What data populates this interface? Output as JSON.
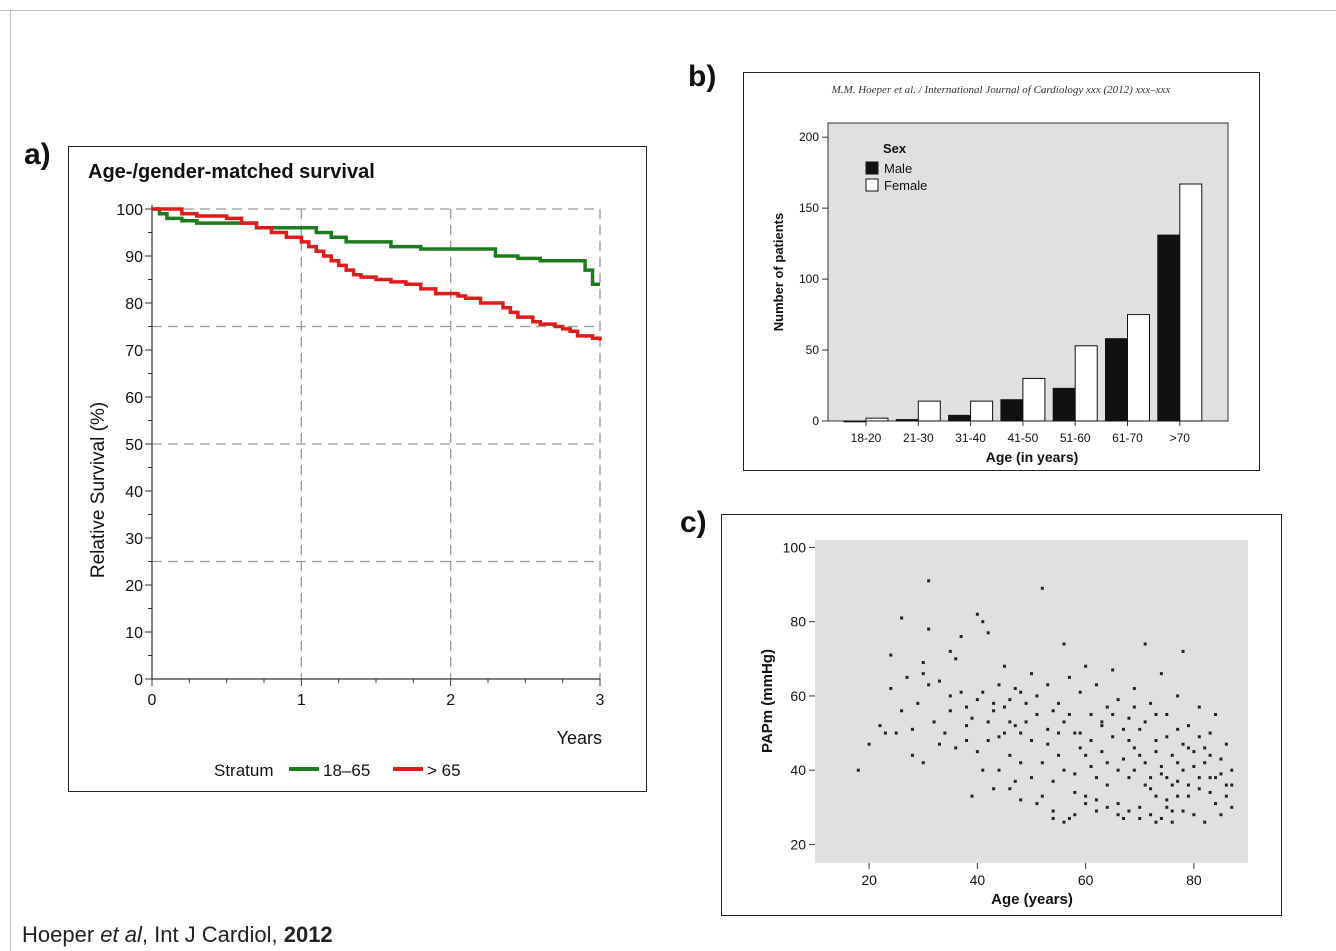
{
  "citation": {
    "author": "Hoeper",
    "etal": "et al",
    "journal": ", Int J Cardiol, ",
    "year": "2012"
  },
  "panels": {
    "a": "a)",
    "b": "b)",
    "c": "c)"
  },
  "chart_data": [
    {
      "id": "a",
      "type": "line",
      "title": "Age-/gender-matched survival",
      "xlabel": "Years",
      "ylabel": "Relative Survival (%)",
      "xlim": [
        0,
        3
      ],
      "ylim": [
        0,
        100
      ],
      "xticks": [
        "0",
        "1",
        "2",
        "3"
      ],
      "yticks": [
        "0",
        "10",
        "20",
        "30",
        "40",
        "50",
        "60",
        "70",
        "80",
        "90",
        "100"
      ],
      "grid": "dashed at x=1,2,3 and y=25,50,75,100",
      "legend": {
        "title": "Stratum",
        "placement": "bottom"
      },
      "colors": {
        "18–65": "#1e7a1e",
        "> 65": "#e11b1b"
      },
      "series": [
        {
          "name": "18–65",
          "step": true,
          "x": [
            0,
            0.05,
            0.1,
            0.2,
            0.3,
            0.5,
            0.7,
            1.0,
            1.1,
            1.2,
            1.3,
            1.45,
            1.6,
            1.8,
            2.3,
            2.45,
            2.6,
            2.85,
            2.9,
            2.95,
            3.0
          ],
          "y": [
            100,
            99,
            98,
            97.5,
            97,
            97,
            96,
            96,
            95,
            94,
            93,
            93,
            92,
            91.5,
            90,
            89.5,
            89,
            89,
            87,
            84,
            84
          ]
        },
        {
          "name": "> 65",
          "step": true,
          "x": [
            0,
            0.2,
            0.3,
            0.5,
            0.6,
            0.7,
            0.8,
            0.9,
            1.0,
            1.05,
            1.1,
            1.15,
            1.2,
            1.25,
            1.3,
            1.35,
            1.4,
            1.5,
            1.6,
            1.7,
            1.8,
            1.9,
            2.0,
            2.05,
            2.1,
            2.2,
            2.35,
            2.4,
            2.45,
            2.55,
            2.6,
            2.7,
            2.75,
            2.8,
            2.85,
            2.95,
            3.0
          ],
          "y": [
            100,
            99,
            98.5,
            98,
            97,
            96,
            95,
            94,
            93,
            92,
            91,
            90,
            89,
            88,
            87,
            86,
            85.5,
            85,
            84.5,
            84,
            83,
            82,
            82,
            81.5,
            81,
            80,
            79,
            78,
            77,
            76,
            75.5,
            75,
            74.5,
            74,
            73,
            72.5,
            72
          ]
        }
      ]
    },
    {
      "id": "b",
      "type": "bar",
      "header": "M.M. Hoeper et al. / International Journal of Cardiology xxx (2012) xxx–xxx",
      "xlabel": "Age (in years)",
      "ylabel": "Number of patients",
      "ylim": [
        0,
        210
      ],
      "yticks": [
        "0",
        "50",
        "100",
        "150",
        "200"
      ],
      "categories": [
        "18-20",
        "21-30",
        "31-40",
        "41-50",
        "51-60",
        "61-70",
        ">70"
      ],
      "legend": {
        "title": "Sex",
        "placement": "top-left"
      },
      "colors": {
        "Male": "#111111",
        "Female": "#ffffff",
        "background": "#e0e0e0"
      },
      "series": [
        {
          "name": "Male",
          "values": [
            0,
            1,
            4,
            15,
            23,
            58,
            131
          ]
        },
        {
          "name": "Female",
          "values": [
            2,
            14,
            14,
            30,
            53,
            75,
            167
          ]
        }
      ]
    },
    {
      "id": "c",
      "type": "scatter",
      "xlabel": "Age (years)",
      "ylabel": "PAPm (mmHg)",
      "xlim": [
        10,
        90
      ],
      "ylim": [
        15,
        102
      ],
      "xticks": [
        "20",
        "40",
        "60",
        "80"
      ],
      "yticks": [
        "20",
        "40",
        "60",
        "80",
        "100"
      ],
      "colors": {
        "point": "#222222",
        "background": "#e0e0e0"
      },
      "points": [
        [
          18,
          40
        ],
        [
          20,
          47
        ],
        [
          22,
          52
        ],
        [
          23,
          50
        ],
        [
          24,
          71
        ],
        [
          24,
          62
        ],
        [
          25,
          50
        ],
        [
          26,
          81
        ],
        [
          26,
          56
        ],
        [
          27,
          65
        ],
        [
          28,
          51
        ],
        [
          28,
          44
        ],
        [
          29,
          58
        ],
        [
          30,
          69
        ],
        [
          30,
          66
        ],
        [
          30,
          42
        ],
        [
          31,
          78
        ],
        [
          31,
          63
        ],
        [
          31,
          91
        ],
        [
          32,
          53
        ],
        [
          33,
          64
        ],
        [
          33,
          47
        ],
        [
          34,
          50
        ],
        [
          35,
          72
        ],
        [
          35,
          56
        ],
        [
          36,
          46
        ],
        [
          36,
          70
        ],
        [
          37,
          61
        ],
        [
          37,
          76
        ],
        [
          38,
          52
        ],
        [
          38,
          48
        ],
        [
          39,
          33
        ],
        [
          40,
          59
        ],
        [
          40,
          45
        ],
        [
          40,
          82
        ],
        [
          41,
          80
        ],
        [
          41,
          61
        ],
        [
          41,
          40
        ],
        [
          42,
          77
        ],
        [
          42,
          53
        ],
        [
          43,
          35
        ],
        [
          43,
          56
        ],
        [
          44,
          63
        ],
        [
          44,
          49
        ],
        [
          45,
          68
        ],
        [
          45,
          57
        ],
        [
          46,
          59
        ],
        [
          46,
          44
        ],
        [
          47,
          37
        ],
        [
          47,
          52
        ],
        [
          48,
          61
        ],
        [
          48,
          32
        ],
        [
          49,
          53
        ],
        [
          50,
          66
        ],
        [
          50,
          48
        ],
        [
          51,
          31
        ],
        [
          51,
          60
        ],
        [
          52,
          42
        ],
        [
          52,
          89
        ],
        [
          53,
          63
        ],
        [
          53,
          47
        ],
        [
          54,
          56
        ],
        [
          54,
          29
        ],
        [
          55,
          58
        ],
        [
          55,
          44
        ],
        [
          56,
          74
        ],
        [
          56,
          53
        ],
        [
          57,
          27
        ],
        [
          57,
          65
        ],
        [
          58,
          50
        ],
        [
          58,
          39
        ],
        [
          59,
          61
        ],
        [
          59,
          46
        ],
        [
          60,
          68
        ],
        [
          60,
          33
        ],
        [
          61,
          55
        ],
        [
          61,
          41
        ],
        [
          62,
          63
        ],
        [
          62,
          29
        ],
        [
          63,
          52
        ],
        [
          63,
          45
        ],
        [
          64,
          57
        ],
        [
          64,
          36
        ],
        [
          65,
          67
        ],
        [
          65,
          49
        ],
        [
          66,
          31
        ],
        [
          66,
          59
        ],
        [
          67,
          43
        ],
        [
          67,
          27
        ],
        [
          68,
          54
        ],
        [
          68,
          38
        ],
        [
          69,
          62
        ],
        [
          69,
          46
        ],
        [
          70,
          30
        ],
        [
          70,
          51
        ],
        [
          71,
          74
        ],
        [
          71,
          42
        ],
        [
          72,
          35
        ],
        [
          72,
          58
        ],
        [
          73,
          26
        ],
        [
          73,
          48
        ],
        [
          74,
          66
        ],
        [
          74,
          39
        ],
        [
          75,
          32
        ],
        [
          75,
          55
        ],
        [
          76,
          44
        ],
        [
          76,
          29
        ],
        [
          77,
          60
        ],
        [
          77,
          37
        ],
        [
          78,
          47
        ],
        [
          78,
          72
        ],
        [
          79,
          33
        ],
        [
          79,
          52
        ],
        [
          80,
          28
        ],
        [
          80,
          41
        ],
        [
          81,
          57
        ],
        [
          81,
          35
        ],
        [
          82,
          46
        ],
        [
          82,
          26
        ],
        [
          83,
          50
        ],
        [
          83,
          38
        ],
        [
          84,
          31
        ],
        [
          84,
          55
        ],
        [
          85,
          43
        ],
        [
          85,
          28
        ],
        [
          86,
          36
        ],
        [
          86,
          47
        ],
        [
          87,
          30
        ],
        [
          87,
          40
        ],
        [
          70,
          44
        ],
        [
          72,
          38
        ],
        [
          74,
          41
        ],
        [
          76,
          36
        ],
        [
          78,
          40
        ],
        [
          73,
          33
        ],
        [
          75,
          38
        ],
        [
          77,
          42
        ],
        [
          79,
          36
        ],
        [
          71,
          36
        ],
        [
          69,
          40
        ],
        [
          73,
          45
        ],
        [
          75,
          30
        ],
        [
          77,
          33
        ],
        [
          81,
          38
        ],
        [
          83,
          34
        ],
        [
          68,
          48
        ],
        [
          66,
          40
        ],
        [
          64,
          42
        ],
        [
          62,
          38
        ],
        [
          60,
          44
        ],
        [
          58,
          34
        ],
        [
          56,
          40
        ],
        [
          54,
          37
        ],
        [
          52,
          33
        ],
        [
          50,
          38
        ],
        [
          48,
          42
        ],
        [
          46,
          35
        ],
        [
          44,
          40
        ],
        [
          42,
          48
        ],
        [
          55,
          50
        ],
        [
          57,
          55
        ],
        [
          59,
          50
        ],
        [
          61,
          48
        ],
        [
          63,
          53
        ],
        [
          65,
          55
        ],
        [
          67,
          51
        ],
        [
          69,
          57
        ],
        [
          71,
          53
        ],
        [
          73,
          55
        ],
        [
          75,
          49
        ],
        [
          77,
          51
        ],
        [
          79,
          46
        ],
        [
          81,
          49
        ],
        [
          83,
          44
        ],
        [
          85,
          39
        ],
        [
          87,
          36
        ],
        [
          86,
          33
        ],
        [
          84,
          38
        ],
        [
          82,
          42
        ],
        [
          80,
          45
        ],
        [
          78,
          29
        ],
        [
          76,
          26
        ],
        [
          74,
          27
        ],
        [
          72,
          28
        ],
        [
          70,
          27
        ],
        [
          68,
          29
        ],
        [
          66,
          28
        ],
        [
          64,
          30
        ],
        [
          62,
          32
        ],
        [
          60,
          31
        ],
        [
          58,
          28
        ],
        [
          56,
          26
        ],
        [
          54,
          27
        ],
        [
          45,
          50
        ],
        [
          47,
          62
        ],
        [
          49,
          58
        ],
        [
          51,
          55
        ],
        [
          53,
          51
        ],
        [
          35,
          60
        ],
        [
          38,
          57
        ],
        [
          39,
          54
        ],
        [
          43,
          58
        ],
        [
          46,
          53
        ],
        [
          48,
          50
        ]
      ]
    }
  ]
}
